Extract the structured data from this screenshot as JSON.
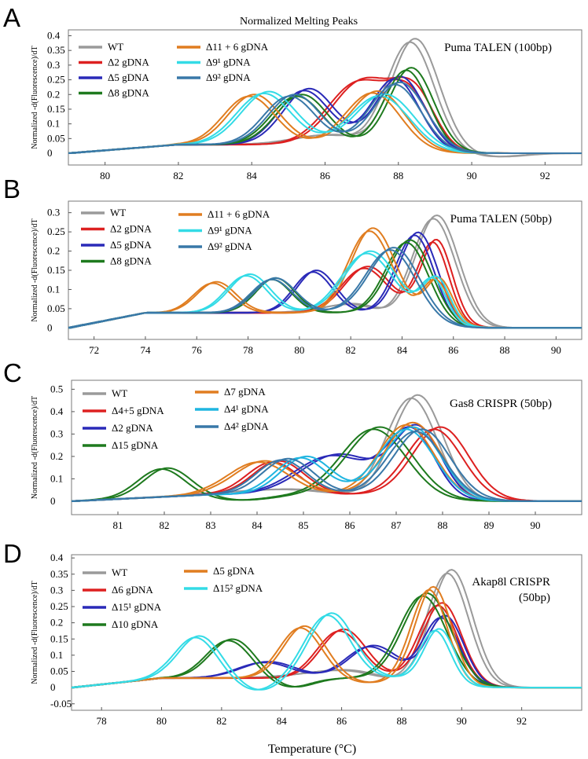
{
  "figure": {
    "title": "Normalized Melting Peaks",
    "xlabel": "Temperature (°C)"
  },
  "chart_data": [
    {
      "type": "line",
      "panel": "A",
      "tag": "Puma TALEN (100bp)",
      "ylabel": "Normalized -d(Fluorescence)/dT",
      "xlim": [
        79,
        93
      ],
      "ylim": [
        -0.04,
        0.42
      ],
      "xticks": [
        80,
        82,
        84,
        86,
        88,
        90,
        92
      ],
      "yticks": [
        0,
        0.05,
        0.1,
        0.15,
        0.2,
        0.25,
        0.3,
        0.35,
        0.4
      ],
      "series": [
        {
          "name": "WT",
          "color": "#9a9a9a",
          "peaks": [
            [
              88.4,
              0.385,
              0.65
            ],
            [
              86.3,
              0.04,
              1.0
            ]
          ],
          "tail": 0.03,
          "dip": [
            90.7,
            -0.012
          ]
        },
        {
          "name": "Δ2 gDNA",
          "color": "#dd2020",
          "peaks": [
            [
              87.0,
              0.22,
              0.85
            ],
            [
              88.4,
              0.16,
              0.55
            ]
          ],
          "tail": 0.03
        },
        {
          "name": "Δ5 gDNA",
          "color": "#2a2ab8",
          "peaks": [
            [
              85.5,
              0.19,
              0.7
            ],
            [
              88.0,
              0.24,
              0.65
            ]
          ],
          "tail": 0.03
        },
        {
          "name": "Δ8 gDNA",
          "color": "#1e7a1e",
          "peaks": [
            [
              85.3,
              0.17,
              0.7
            ],
            [
              88.3,
              0.27,
              0.6
            ]
          ],
          "tail": 0.03
        },
        {
          "name": "Δ11 + 6 gDNA",
          "color": "#e07d20",
          "peaks": [
            [
              84.0,
              0.17,
              0.7
            ],
            [
              87.4,
              0.19,
              0.75
            ]
          ],
          "tail": 0.03
        },
        {
          "name": "Δ9¹ gDNA",
          "color": "#33dbe6",
          "peaks": [
            [
              84.4,
              0.18,
              0.75
            ],
            [
              87.6,
              0.18,
              0.8
            ]
          ],
          "tail": 0.03
        },
        {
          "name": "Δ9² gDNA",
          "color": "#3978a8",
          "peaks": [
            [
              85.1,
              0.17,
              0.7
            ],
            [
              88.0,
              0.22,
              0.7
            ]
          ],
          "tail": 0.03
        }
      ]
    },
    {
      "type": "line",
      "panel": "B",
      "tag": "Puma TALEN (50bp)",
      "ylabel": "Normalized -d(Fluorescence)/dT",
      "xlim": [
        71,
        91
      ],
      "ylim": [
        -0.03,
        0.33
      ],
      "xticks": [
        72,
        74,
        76,
        78,
        80,
        82,
        84,
        86,
        88,
        90
      ],
      "yticks": [
        0,
        0.05,
        0.1,
        0.15,
        0.2,
        0.25,
        0.3
      ],
      "series": [
        {
          "name": "WT",
          "color": "#9a9a9a",
          "peaks": [
            [
              85.3,
              0.29,
              0.85
            ],
            [
              82.5,
              0.03,
              1.3
            ]
          ],
          "tail": 0.04
        },
        {
          "name": "Δ2 gDNA",
          "color": "#dd2020",
          "peaks": [
            [
              82.6,
              0.12,
              0.9
            ],
            [
              85.3,
              0.2,
              0.6
            ]
          ],
          "tail": 0.04
        },
        {
          "name": "Δ5 gDNA",
          "color": "#2a2ab8",
          "peaks": [
            [
              80.6,
              0.11,
              0.75
            ],
            [
              84.6,
              0.22,
              0.75
            ]
          ],
          "tail": 0.04
        },
        {
          "name": "Δ8 gDNA",
          "color": "#1e7a1e",
          "peaks": [
            [
              79.0,
              0.09,
              0.75
            ],
            [
              84.3,
              0.2,
              0.85
            ]
          ],
          "tail": 0.04
        },
        {
          "name": "Δ11 + 6 gDNA",
          "color": "#e07d20",
          "peaks": [
            [
              76.7,
              0.08,
              0.75
            ],
            [
              82.8,
              0.22,
              0.85
            ],
            [
              85.4,
              0.1,
              0.5
            ]
          ],
          "tail": 0.04
        },
        {
          "name": "Δ9¹ gDNA",
          "color": "#33dbe6",
          "peaks": [
            [
              78.0,
              0.1,
              0.8
            ],
            [
              82.7,
              0.16,
              1.0
            ],
            [
              85.3,
              0.1,
              0.5
            ]
          ],
          "tail": 0.04
        },
        {
          "name": "Δ9² gDNA",
          "color": "#3978a8",
          "peaks": [
            [
              79.0,
              0.09,
              0.8
            ],
            [
              83.7,
              0.18,
              1.0
            ]
          ],
          "tail": 0.04
        }
      ]
    },
    {
      "type": "line",
      "panel": "C",
      "tag": "Gas8 CRISPR (50bp)",
      "ylabel": "Normalized -d(Fluorescence)/dT",
      "xlim": [
        80,
        91
      ],
      "ylim": [
        -0.06,
        0.54
      ],
      "xticks": [
        81,
        82,
        83,
        84,
        85,
        86,
        87,
        88,
        89,
        90
      ],
      "yticks": [
        0,
        0.1,
        0.2,
        0.3,
        0.4,
        0.5
      ],
      "series": [
        {
          "name": "WT",
          "color": "#9a9a9a",
          "peaks": [
            [
              87.4,
              0.47,
              0.55
            ],
            [
              85.0,
              0.03,
              1.2
            ]
          ],
          "tail": 0.03
        },
        {
          "name": "Δ4+5 gDNA",
          "color": "#dd2020",
          "peaks": [
            [
              84.4,
              0.15,
              0.55
            ],
            [
              87.9,
              0.31,
              0.6
            ]
          ],
          "tail": 0.03
        },
        {
          "name": "Δ2 gDNA",
          "color": "#2a2ab8",
          "peaks": [
            [
              85.7,
              0.18,
              0.8
            ],
            [
              87.4,
              0.3,
              0.5
            ]
          ],
          "tail": 0.03
        },
        {
          "name": "Δ15 gDNA",
          "color": "#1e7a1e",
          "peaks": [
            [
              82.0,
              0.13,
              0.5
            ],
            [
              86.6,
              0.31,
              0.7
            ]
          ],
          "tail": 0.03,
          "dip": [
            83.6,
            -0.025
          ]
        },
        {
          "name": "Δ7 gDNA",
          "color": "#e07d20",
          "peaks": [
            [
              84.1,
              0.15,
              0.65
            ],
            [
              87.3,
              0.33,
              0.6
            ]
          ],
          "tail": 0.03
        },
        {
          "name": "Δ4¹ gDNA",
          "color": "#1fb5e0",
          "peaks": [
            [
              85.0,
              0.17,
              0.55
            ],
            [
              87.3,
              0.31,
              0.6
            ]
          ],
          "tail": 0.03
        },
        {
          "name": "Δ4² gDNA",
          "color": "#3978a8",
          "peaks": [
            [
              84.6,
              0.16,
              0.55
            ],
            [
              87.5,
              0.3,
              0.6
            ]
          ],
          "tail": 0.03
        }
      ]
    },
    {
      "type": "line",
      "panel": "D",
      "tag": "Akap8l CRISPR (50bp)",
      "ylabel": "Normalized -d(Fluorescence)/dT",
      "xlim": [
        77,
        94
      ],
      "ylim": [
        -0.07,
        0.41
      ],
      "xticks": [
        78,
        80,
        82,
        84,
        86,
        88,
        90,
        92
      ],
      "yticks": [
        -0.05,
        0,
        0.05,
        0.1,
        0.15,
        0.2,
        0.25,
        0.3,
        0.35,
        0.4
      ],
      "series": [
        {
          "name": "WT",
          "color": "#9a9a9a",
          "peaks": [
            [
              89.6,
              0.36,
              0.7
            ],
            [
              86.5,
              0.03,
              1.5
            ]
          ],
          "tail": 0.03
        },
        {
          "name": "Δ6 gDNA",
          "color": "#dd2020",
          "peaks": [
            [
              86.0,
              0.15,
              0.75
            ],
            [
              89.3,
              0.24,
              0.65
            ]
          ],
          "tail": 0.03
        },
        {
          "name": "Δ15¹ gDNA",
          "color": "#2a2ab8",
          "peaks": [
            [
              83.5,
              0.05,
              0.9
            ],
            [
              87.0,
              0.1,
              0.8
            ],
            [
              89.4,
              0.2,
              0.6
            ]
          ],
          "tail": 0.03
        },
        {
          "name": "Δ10 gDNA",
          "color": "#1e7a1e",
          "peaks": [
            [
              82.3,
              0.12,
              0.75
            ],
            [
              88.8,
              0.27,
              0.8
            ]
          ],
          "tail": 0.03,
          "dip": [
            84.3,
            -0.03
          ]
        },
        {
          "name": "Δ5 gDNA",
          "color": "#e07d20",
          "peaks": [
            [
              84.7,
              0.16,
              0.7
            ],
            [
              89.0,
              0.29,
              0.6
            ]
          ],
          "tail": 0.03,
          "dip": [
            86.9,
            -0.015
          ]
        },
        {
          "name": "Δ15² gDNA",
          "color": "#33dbe6",
          "peaks": [
            [
              81.2,
              0.13,
              0.7
            ],
            [
              85.6,
              0.2,
              0.75
            ],
            [
              89.2,
              0.16,
              0.5
            ]
          ],
          "tail": 0.03,
          "dip": [
            83.2,
            -0.04
          ]
        }
      ]
    }
  ]
}
